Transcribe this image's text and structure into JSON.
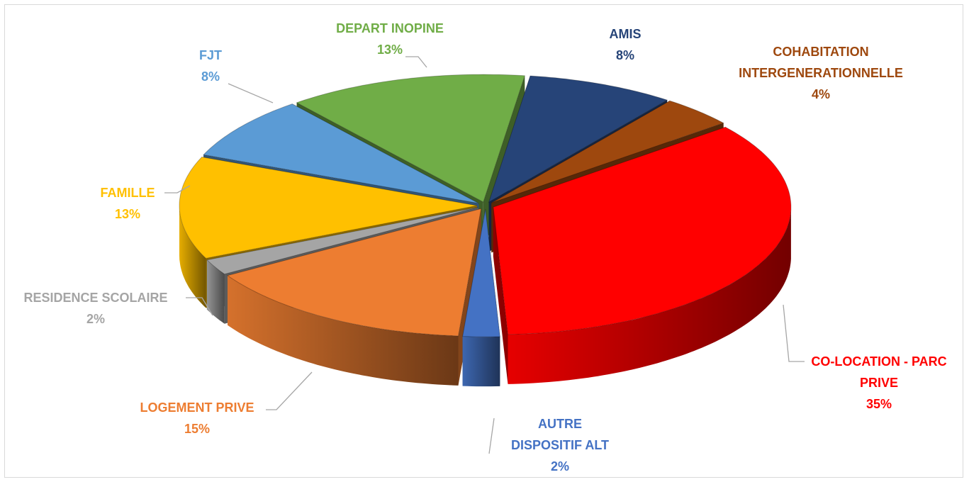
{
  "chart_data": {
    "type": "pie",
    "categories": [
      "AMIS",
      "COHABITATION INTERGENERATIONNELLE",
      "CO-LOCATION - PARC PRIVE",
      "AUTRE DISPOSITIF ALT",
      "LOGEMENT PRIVE",
      "RESIDENCE SCOLAIRE",
      "FAMILLE",
      "FJT",
      "DEPART INOPINE"
    ],
    "values": [
      8,
      4,
      35,
      2,
      15,
      2,
      13,
      8,
      13
    ],
    "value_labels": [
      "8%",
      "4%",
      "35%",
      "2%",
      "15%",
      "2%",
      "13%",
      "8%",
      "13%"
    ],
    "colors": [
      "#264478",
      "#9E480E",
      "#FF0000",
      "#4472C4",
      "#ED7D31",
      "#A5A5A5",
      "#FFC000",
      "#5B9BD5",
      "#70AD47"
    ]
  }
}
